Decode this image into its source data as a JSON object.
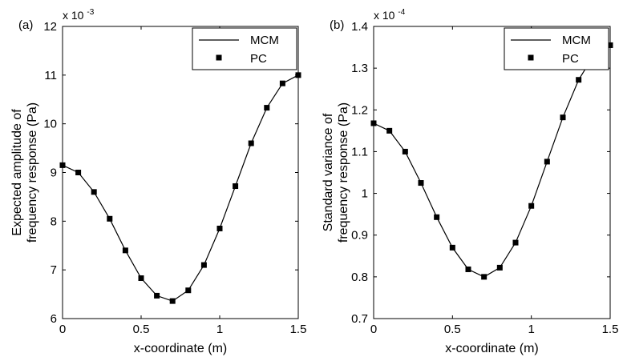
{
  "chart_data": [
    {
      "panel_label": "(a)",
      "type": "line",
      "xlabel": "x-coordinate (m)",
      "ylabel": [
        "Expected amplitude of",
        "frequency response (Pa)"
      ],
      "exponent_label": "x 10",
      "exponent_power": "-3",
      "xlim": [
        0,
        1.5
      ],
      "ylim": [
        6,
        12
      ],
      "xticks": [
        0,
        0.5,
        1,
        1.5
      ],
      "xtick_labels": [
        "0",
        "0.5",
        "1",
        "1.5"
      ],
      "yticks": [
        6,
        7,
        8,
        9,
        10,
        11,
        12
      ],
      "ytick_labels": [
        "6",
        "7",
        "8",
        "9",
        "10",
        "11",
        "12"
      ],
      "grid": false,
      "legend_position": "top-right",
      "series": [
        {
          "name": "MCM",
          "style": "line",
          "color": "#000000",
          "x": [
            0,
            0.1,
            0.2,
            0.3,
            0.4,
            0.5,
            0.6,
            0.7,
            0.8,
            0.9,
            1.0,
            1.1,
            1.2,
            1.3,
            1.4,
            1.5
          ],
          "y": [
            9.15,
            9.0,
            8.6,
            8.05,
            7.4,
            6.83,
            6.47,
            6.36,
            6.58,
            7.1,
            7.85,
            8.72,
            9.6,
            10.33,
            10.83,
            11.0
          ]
        },
        {
          "name": "PC",
          "style": "square-marker",
          "color": "#000000",
          "x": [
            0,
            0.1,
            0.2,
            0.3,
            0.4,
            0.5,
            0.6,
            0.7,
            0.8,
            0.9,
            1.0,
            1.1,
            1.2,
            1.3,
            1.4,
            1.5
          ],
          "y": [
            9.15,
            9.0,
            8.6,
            8.05,
            7.4,
            6.83,
            6.47,
            6.36,
            6.58,
            7.1,
            7.85,
            8.72,
            9.6,
            10.33,
            10.83,
            11.0
          ]
        }
      ]
    },
    {
      "panel_label": "(b)",
      "type": "line",
      "xlabel": "x-coordinate (m)",
      "ylabel": [
        "Standard variance of",
        "frequency response (Pa)"
      ],
      "exponent_label": "x 10",
      "exponent_power": "-4",
      "xlim": [
        0,
        1.5
      ],
      "ylim": [
        0.7,
        1.4
      ],
      "xticks": [
        0,
        0.5,
        1,
        1.5
      ],
      "xtick_labels": [
        "0",
        "0.5",
        "1",
        "1.5"
      ],
      "yticks": [
        0.7,
        0.8,
        0.9,
        1.0,
        1.1,
        1.2,
        1.3,
        1.4
      ],
      "ytick_labels": [
        "0.7",
        "0.8",
        "0.9",
        "1",
        "1.1",
        "1.2",
        "1.3",
        "1.4"
      ],
      "grid": false,
      "legend_position": "top-right",
      "series": [
        {
          "name": "MCM",
          "style": "line",
          "color": "#000000",
          "x": [
            0,
            0.1,
            0.2,
            0.3,
            0.4,
            0.5,
            0.6,
            0.7,
            0.8,
            0.9,
            1.0,
            1.1,
            1.2,
            1.3,
            1.4,
            1.5
          ],
          "y": [
            1.168,
            1.15,
            1.1,
            1.025,
            0.943,
            0.87,
            0.818,
            0.8,
            0.822,
            0.882,
            0.97,
            1.076,
            1.182,
            1.272,
            1.333,
            1.355
          ]
        },
        {
          "name": "PC",
          "style": "square-marker",
          "color": "#000000",
          "x": [
            0,
            0.1,
            0.2,
            0.3,
            0.4,
            0.5,
            0.6,
            0.7,
            0.8,
            0.9,
            1.0,
            1.1,
            1.2,
            1.3,
            1.4,
            1.5
          ],
          "y": [
            1.168,
            1.15,
            1.1,
            1.025,
            0.943,
            0.87,
            0.818,
            0.8,
            0.822,
            0.882,
            0.97,
            1.076,
            1.182,
            1.272,
            1.333,
            1.355
          ]
        }
      ]
    }
  ]
}
